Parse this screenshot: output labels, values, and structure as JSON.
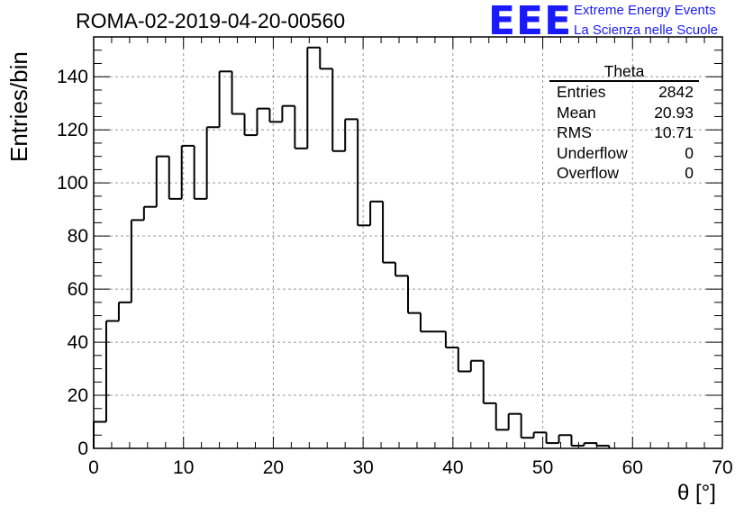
{
  "header": {
    "run_title": "ROMA-02-2019-04-20-00560",
    "logo_text": "EEE",
    "logo_line1": "Extreme Energy Events",
    "logo_line2": "La Scienza nelle Scuole"
  },
  "stats_box": {
    "title": "Theta",
    "rows": [
      {
        "label": "Entries",
        "value": "2842"
      },
      {
        "label": "Mean",
        "value": "20.93"
      },
      {
        "label": "RMS",
        "value": "10.71"
      },
      {
        "label": "Underflow",
        "value": "0"
      },
      {
        "label": "Overflow",
        "value": "0"
      }
    ]
  },
  "colors": {
    "logo": "#1a1aff",
    "histogram": "#000000",
    "grid": "#999999"
  },
  "chart_data": {
    "type": "histogram",
    "title": "ROMA-02-2019-04-20-00560",
    "xlabel": "θ [°]",
    "ylabel": "Entries/bin",
    "xlim": [
      0,
      70
    ],
    "ylim": [
      0,
      155
    ],
    "grid": true,
    "x_ticks": [
      0,
      10,
      20,
      30,
      40,
      50,
      60,
      70
    ],
    "y_ticks": [
      0,
      20,
      40,
      60,
      80,
      100,
      120,
      140
    ],
    "bin_width": 1.4,
    "bin_edges_start": 0,
    "values": [
      10,
      48,
      55,
      86,
      91,
      110,
      94,
      114,
      94,
      121,
      142,
      126,
      118,
      128,
      123,
      129,
      113,
      151,
      143,
      112,
      124,
      84,
      93,
      70,
      65,
      51,
      44,
      44,
      38,
      29,
      33,
      17,
      7,
      13,
      4,
      6,
      2,
      5,
      1,
      2,
      1,
      0,
      0,
      0,
      0,
      0,
      0,
      0,
      0,
      0
    ]
  }
}
